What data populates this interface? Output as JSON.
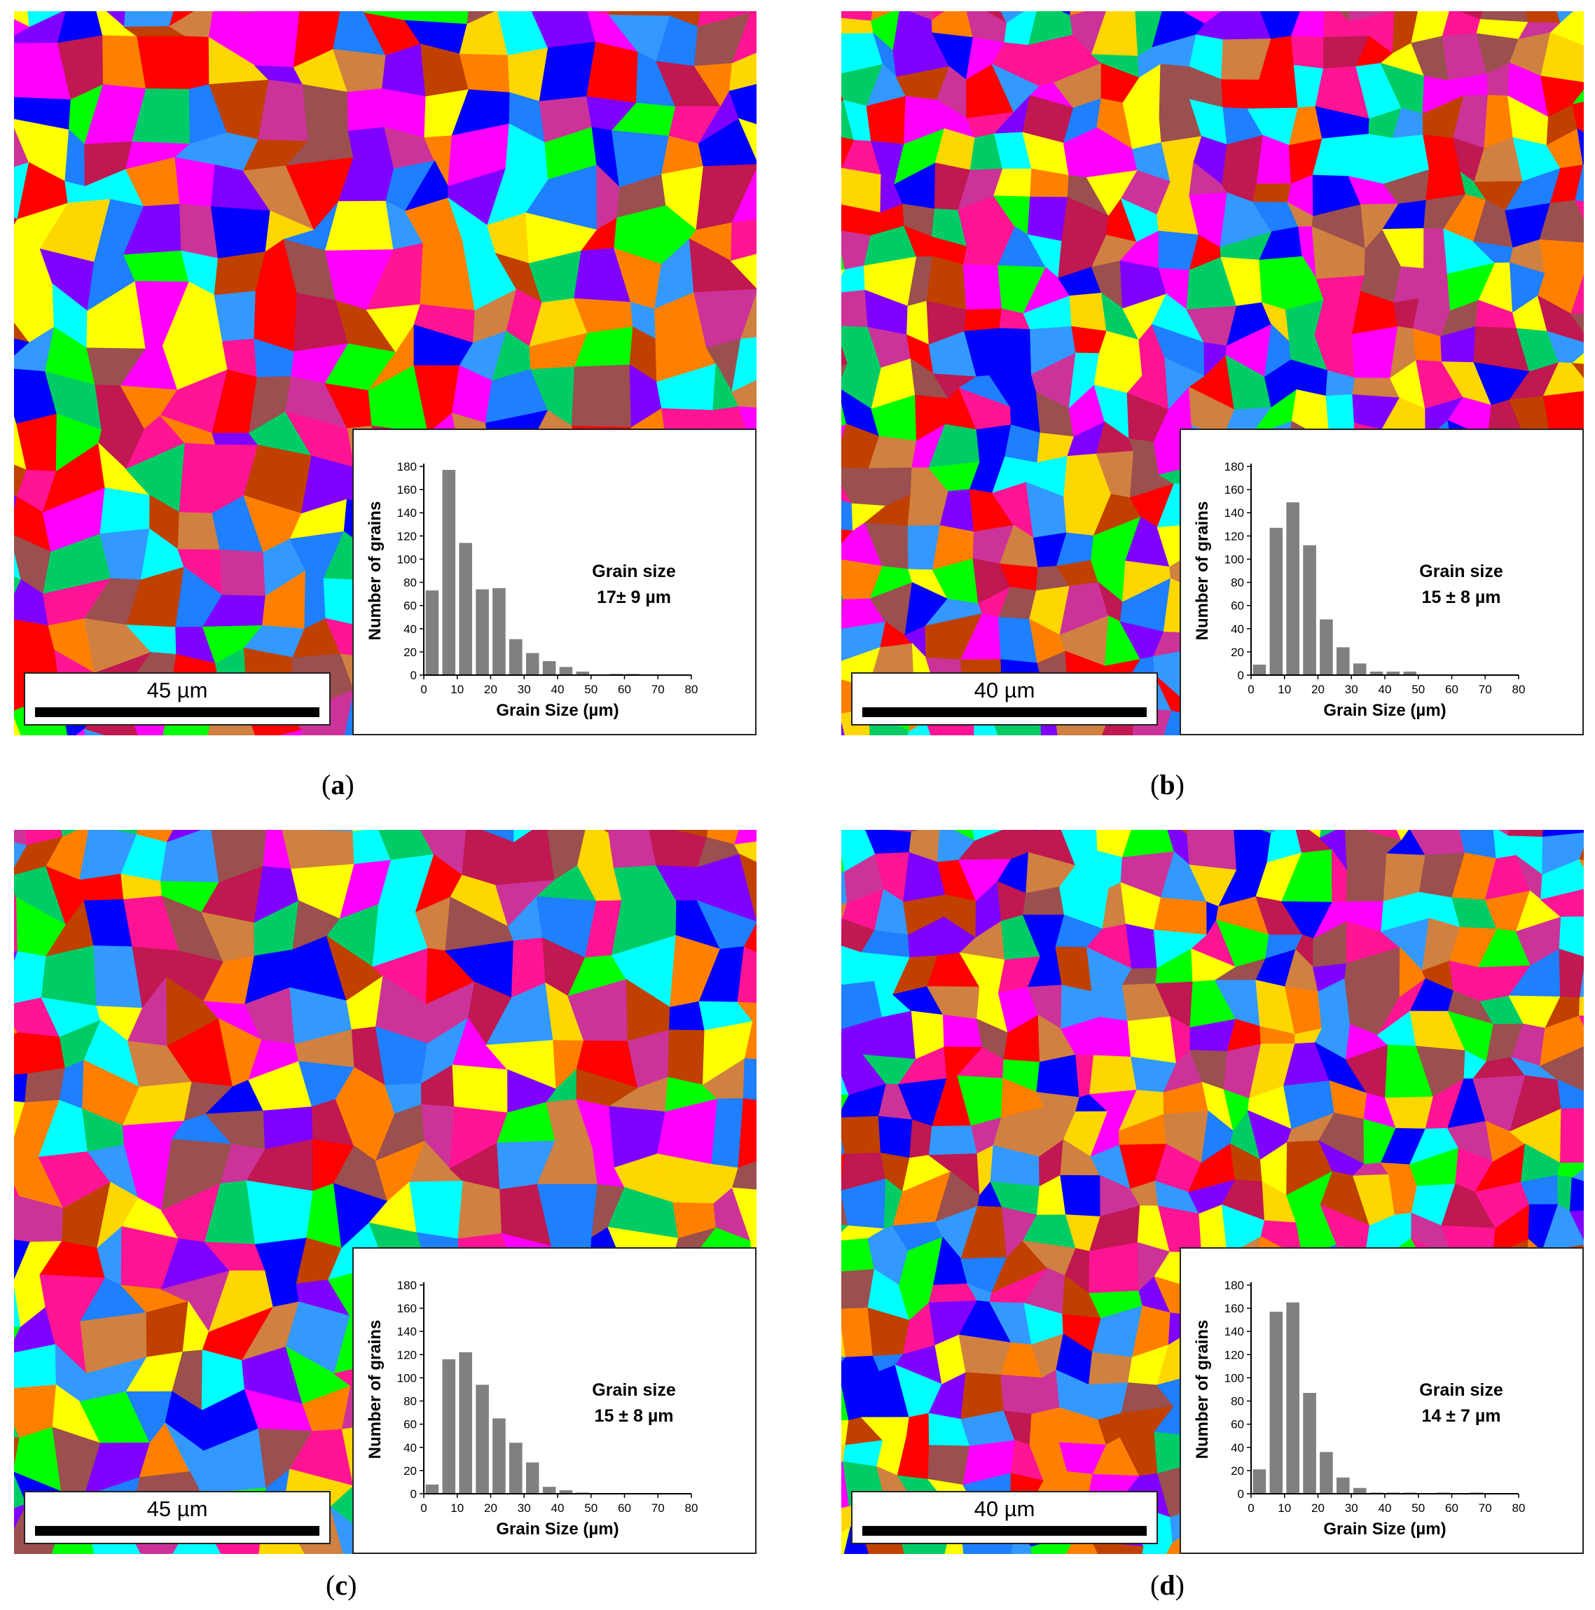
{
  "panels": [
    {
      "id": "a",
      "caption": "a",
      "scale_label": "45 µm",
      "grain_size_title": "Grain size",
      "grain_size_value": "17± 9 µm"
    },
    {
      "id": "b",
      "caption": "b",
      "scale_label": "40 µm",
      "grain_size_title": "Grain size",
      "grain_size_value": "15 ± 8 µm"
    },
    {
      "id": "c",
      "caption": "c",
      "scale_label": "45 µm",
      "grain_size_title": "Grain size",
      "grain_size_value": "15 ± 8 µm"
    },
    {
      "id": "d",
      "caption": "d",
      "scale_label": "40 µm",
      "grain_size_title": "Grain size",
      "grain_size_value": "14 ± 7 µm"
    }
  ],
  "grain_palette": [
    "#ff0000",
    "#00ff00",
    "#0000ff",
    "#ffff00",
    "#ff00ff",
    "#00ffff",
    "#ff8000",
    "#8000ff",
    "#00cc66",
    "#c04000",
    "#c01850",
    "#d08040",
    "#ff1493",
    "#1e7fff",
    "#9b4f4f",
    "#ffd700",
    "#3399ff",
    "#cc3399"
  ],
  "chart_data": [
    {
      "type": "bar",
      "panel": "a",
      "x": [
        2.5,
        7.5,
        12.5,
        17.5,
        22.5,
        27.5,
        32.5,
        37.5,
        42.5,
        47.5,
        52.5,
        57.5,
        62.5
      ],
      "values": [
        73,
        177,
        114,
        74,
        75,
        31,
        19,
        12,
        7,
        3,
        0,
        1,
        1
      ],
      "xlabel": "Grain Size (µm)",
      "ylabel": "Number of grains",
      "xlim": [
        0,
        80
      ],
      "ylim": [
        0,
        180
      ],
      "xticks": [
        0,
        10,
        20,
        30,
        40,
        50,
        60,
        70,
        80
      ],
      "yticks": [
        0,
        20,
        40,
        60,
        80,
        100,
        120,
        140,
        160,
        180
      ],
      "bar_color": "#808080"
    },
    {
      "type": "bar",
      "panel": "b",
      "x": [
        2.5,
        7.5,
        12.5,
        17.5,
        22.5,
        27.5,
        32.5,
        37.5,
        42.5,
        47.5
      ],
      "values": [
        9,
        127,
        149,
        112,
        48,
        24,
        10,
        3,
        3,
        3
      ],
      "xlabel": "Grain Size (µm)",
      "ylabel": "Number of grains",
      "xlim": [
        0,
        80
      ],
      "ylim": [
        0,
        180
      ],
      "xticks": [
        0,
        10,
        20,
        30,
        40,
        50,
        60,
        70,
        80
      ],
      "yticks": [
        0,
        20,
        40,
        60,
        80,
        100,
        120,
        140,
        160,
        180
      ],
      "bar_color": "#808080"
    },
    {
      "type": "bar",
      "panel": "c",
      "x": [
        2.5,
        7.5,
        12.5,
        17.5,
        22.5,
        27.5,
        32.5,
        37.5,
        42.5,
        47.5
      ],
      "values": [
        8,
        116,
        122,
        94,
        65,
        44,
        27,
        6,
        3,
        1
      ],
      "xlabel": "Grain Size (µm)",
      "ylabel": "Number of grains",
      "xlim": [
        0,
        80
      ],
      "ylim": [
        0,
        180
      ],
      "xticks": [
        0,
        10,
        20,
        30,
        40,
        50,
        60,
        70,
        80
      ],
      "yticks": [
        0,
        20,
        40,
        60,
        80,
        100,
        120,
        140,
        160,
        180
      ],
      "bar_color": "#808080"
    },
    {
      "type": "bar",
      "panel": "d",
      "x": [
        2.5,
        7.5,
        12.5,
        17.5,
        22.5,
        27.5,
        32.5,
        37.5,
        42.5,
        47.5,
        52.5,
        57.5,
        62.5,
        67.5
      ],
      "values": [
        21,
        157,
        165,
        87,
        36,
        14,
        5,
        1,
        1,
        1,
        0,
        1,
        0,
        1
      ],
      "xlabel": "Grain Size (µm)",
      "ylabel": "Number of grains",
      "xlim": [
        0,
        80
      ],
      "ylim": [
        0,
        180
      ],
      "xticks": [
        0,
        10,
        20,
        30,
        40,
        50,
        60,
        70,
        80
      ],
      "yticks": [
        0,
        20,
        40,
        60,
        80,
        100,
        120,
        140,
        160,
        180
      ],
      "bar_color": "#808080"
    }
  ]
}
